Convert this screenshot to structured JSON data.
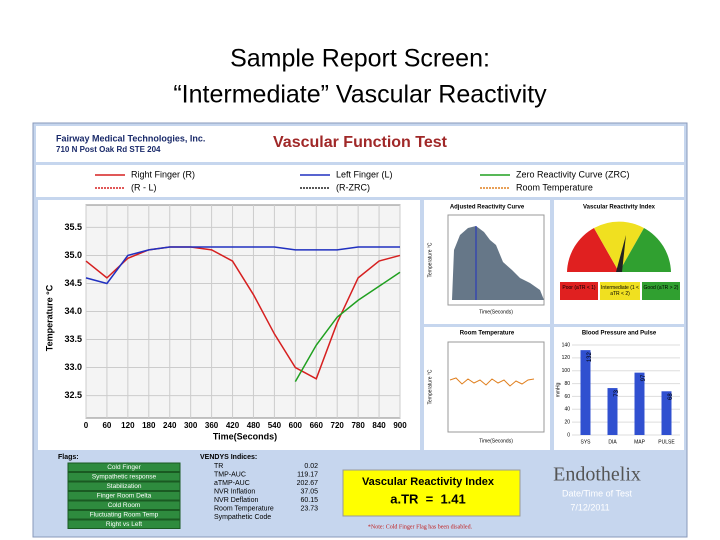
{
  "slide": {
    "title_lines": [
      "Sample Report Screen:",
      "“Intermediate” Vascular Reactivity"
    ]
  },
  "header": {
    "company": "Fairway Medical Technologies, Inc.",
    "address": "710 N Post Oak Rd STE 204",
    "title": "Vascular Function Test"
  },
  "legend": [
    {
      "name": "Right Finger (R)",
      "color": "#d62020"
    },
    {
      "name": "Left Finger (L)",
      "color": "#2030c0"
    },
    {
      "name": "Zero Reactivity Curve (ZRC)",
      "color": "#20a020"
    },
    {
      "name": "(R - L)",
      "color": "#d62020"
    },
    {
      "name": "(R-ZRC)",
      "color": "#202020"
    },
    {
      "name": "Room Temperature",
      "color": "#e08020"
    }
  ],
  "main_chart": {
    "ylabel": "Temperature °C",
    "xlabel": "Time(Seconds)",
    "x": [
      0,
      60,
      120,
      180,
      240,
      300,
      360,
      420,
      480,
      540,
      600,
      660,
      720,
      780,
      840,
      900
    ],
    "xlim": [
      0,
      900
    ],
    "xticks": [
      0,
      60,
      120,
      180,
      240,
      300,
      360,
      420,
      480,
      540,
      600,
      660,
      720,
      780,
      840,
      900
    ],
    "ylim": [
      32.1,
      35.9
    ],
    "yticks": [
      32.5,
      33.0,
      33.5,
      34.0,
      34.5,
      35.0,
      35.5
    ],
    "series": [
      {
        "name": "Right Finger (R)",
        "color": "#d62020",
        "values": [
          34.9,
          34.6,
          34.95,
          35.1,
          35.15,
          35.15,
          35.1,
          34.9,
          34.3,
          33.6,
          33.0,
          32.8,
          33.8,
          34.6,
          34.9,
          35.0
        ]
      },
      {
        "name": "Left Finger (L)",
        "color": "#2030c0",
        "values": [
          34.6,
          34.5,
          35.0,
          35.1,
          35.15,
          35.15,
          35.15,
          35.15,
          35.15,
          35.15,
          35.1,
          35.1,
          35.1,
          35.15,
          35.15,
          35.15
        ]
      },
      {
        "name": "Zero Reactivity Curve (ZRC)",
        "color": "#20a020",
        "values": [
          null,
          null,
          null,
          null,
          null,
          null,
          null,
          null,
          null,
          null,
          32.75,
          33.4,
          33.9,
          34.2,
          34.45,
          34.7
        ]
      }
    ]
  },
  "adjusted_curve": {
    "title": "Adjusted Reactivity Curve",
    "xlabel": "Time(Seconds)",
    "ylabel": "Temperature °C"
  },
  "gauge": {
    "title": "Vascular Reactivity Index",
    "labels": [
      "Poor (aTR < 1)",
      "Intermediate (1 < aTR < 2)",
      "Good (aTR > 2)"
    ]
  },
  "room_chart": {
    "title": "Room Temperature",
    "xlabel": "Time(Seconds)",
    "ylabel": "Temperature °C"
  },
  "bp_chart": {
    "title": "Blood Pressure and Pulse",
    "ylabel": "mmHg",
    "categories": [
      "SYS",
      "DIA",
      "MAP",
      "PULSE"
    ],
    "values": [
      132,
      73,
      97,
      68
    ],
    "ylim": [
      0,
      140
    ],
    "yticks": [
      0,
      20,
      40,
      60,
      80,
      100,
      120,
      140
    ],
    "color": "#3050d0"
  },
  "flags": {
    "label": "Flags:",
    "items": [
      "Cold Finger",
      "Sympathetic response",
      "Stabilization",
      "Finger Room Delta",
      "Cold Room",
      "Fluctuating Room Temp",
      "Right vs Left"
    ]
  },
  "indices": {
    "label": "VENDYS Indices:",
    "rows": [
      [
        "TR",
        "0.02"
      ],
      [
        "TMP-AUC",
        "119.17"
      ],
      [
        "aTMP-AUC",
        "202.67"
      ],
      [
        "NVR Inflation",
        "37.05"
      ],
      [
        "NVR Deflation",
        "60.15"
      ],
      [
        "Room Temperature",
        "23.73"
      ],
      [
        "Sympathetic Code",
        ""
      ]
    ]
  },
  "vri_box": {
    "title": "Vascular Reactivity Index",
    "value": "a.TR  =  1.41"
  },
  "brand": {
    "name": "Endothelix",
    "date_label": "Date/Time of Test",
    "date": "7/12/2011"
  },
  "note": "*Note: Cold Finger Flag has been disabled."
}
